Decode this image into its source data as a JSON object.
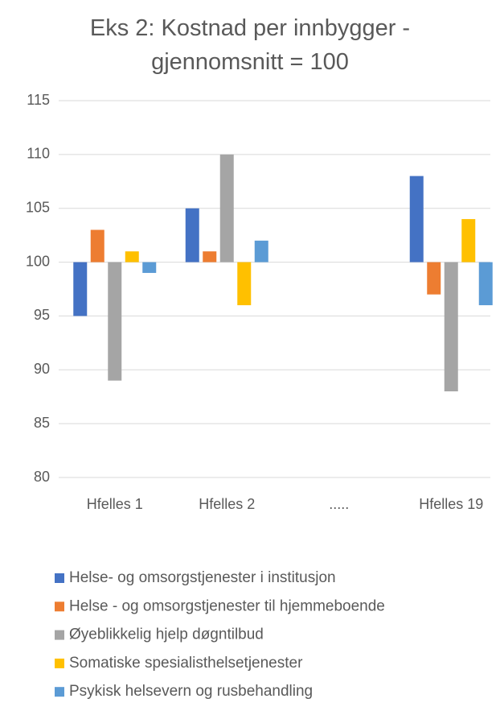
{
  "chart_data": {
    "type": "bar",
    "title": "Eks 2: Kostnad per innbygger - gjennomsnitt = 100",
    "categories": [
      "Hfelles 1",
      "Hfelles 2",
      ".....",
      "Hfelles 19"
    ],
    "series": [
      {
        "name": "Helse- og omsorgstjenester  i institusjon",
        "color": "#4472c4",
        "values": [
          95,
          105,
          null,
          108
        ]
      },
      {
        "name": "Helse - og omsorgstjenester til hjemmeboende",
        "color": "#ed7d31",
        "values": [
          103,
          101,
          null,
          97
        ]
      },
      {
        "name": "Øyeblikkelig hjelp døgntilbud",
        "color": "#a5a5a5",
        "values": [
          89,
          110,
          null,
          88
        ]
      },
      {
        "name": "Somatiske spesialisthelsetjenester",
        "color": "#ffc000",
        "values": [
          101,
          96,
          null,
          104
        ]
      },
      {
        "name": "Psykisk helsevern og rusbehandling",
        "color": "#5b9bd5",
        "values": [
          99,
          102,
          null,
          96
        ]
      }
    ],
    "baseline": 100,
    "ylim": [
      80,
      115
    ],
    "yticks": [
      80,
      85,
      90,
      95,
      100,
      105,
      110,
      115
    ],
    "grid": true,
    "legend": "bottom"
  }
}
